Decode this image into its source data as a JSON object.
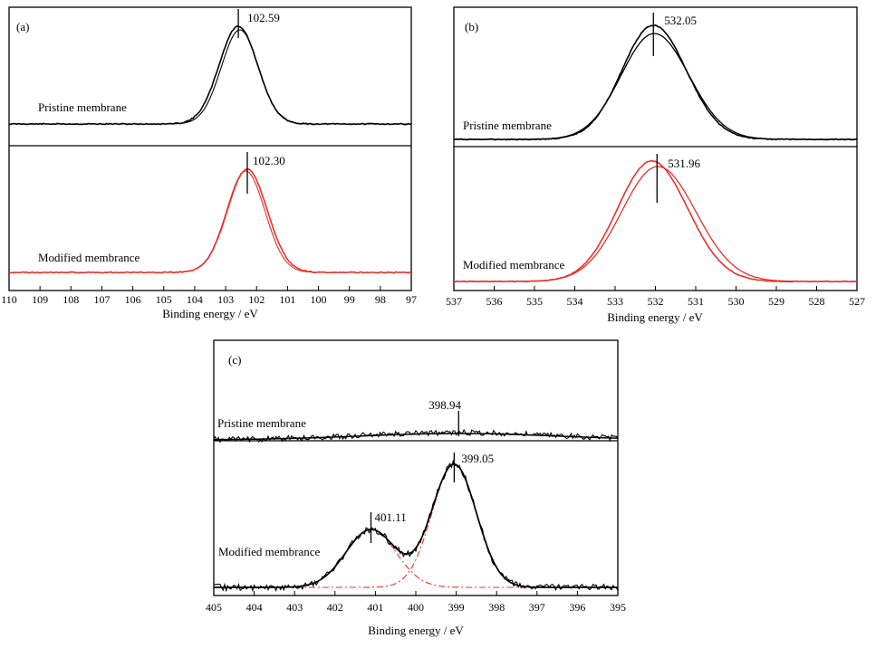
{
  "chart_data": [
    {
      "type": "line",
      "panel": "(a)",
      "xlabel": "Binding energy / eV",
      "xlim": [
        110,
        97
      ],
      "x_reversed": true,
      "xticks": [
        110,
        109,
        108,
        107,
        106,
        105,
        104,
        103,
        102,
        101,
        100,
        99,
        98,
        97
      ],
      "yticks_shown": false,
      "series": [
        {
          "name": "Pristine membrane",
          "color": "#000000",
          "peak_position": 102.59,
          "peak_label": "102.59",
          "fwhm": 2.0,
          "lines": 2
        },
        {
          "name": "Modified membrance",
          "color": "#e8302a",
          "peak_position": 102.3,
          "peak_label": "102.30",
          "fwhm": 2.0,
          "lines": 2
        }
      ]
    },
    {
      "type": "line",
      "panel": "(b)",
      "xlabel": "Binding energy / eV",
      "xlim": [
        537,
        527
      ],
      "x_reversed": true,
      "xticks": [
        537,
        536,
        535,
        534,
        533,
        532,
        531,
        530,
        529,
        528,
        527
      ],
      "yticks_shown": false,
      "series": [
        {
          "name": "Pristine membrane",
          "color": "#000000",
          "peak_position": 532.05,
          "peak_label": "532.05",
          "fwhm": 2.2,
          "lines": 2
        },
        {
          "name": "Modified membrance",
          "color": "#e8302a",
          "peak_position": 531.96,
          "peak_label": "531.96",
          "fwhm": 2.4,
          "lines": 2
        }
      ]
    },
    {
      "type": "line",
      "panel": "(c)",
      "xlabel": "Binding energy / eV",
      "xlim": [
        405,
        395
      ],
      "x_reversed": true,
      "xticks": [
        405,
        404,
        403,
        402,
        401,
        400,
        399,
        398,
        397,
        396,
        395
      ],
      "yticks_shown": false,
      "series": [
        {
          "name": "Pristine membrane",
          "color": "#000000",
          "peak_position": 398.94,
          "peak_label": "398.94"
        },
        {
          "name": "Modified membrance",
          "color": "#000000",
          "fit_components": [
            {
              "peak_position": 401.11,
              "peak_label": "401.11",
              "color": "#e8302a",
              "relative_height": 0.47
            },
            {
              "peak_position": 399.05,
              "peak_label": "399.05",
              "color": "#e8302a",
              "relative_height": 1.0
            }
          ]
        }
      ]
    }
  ]
}
